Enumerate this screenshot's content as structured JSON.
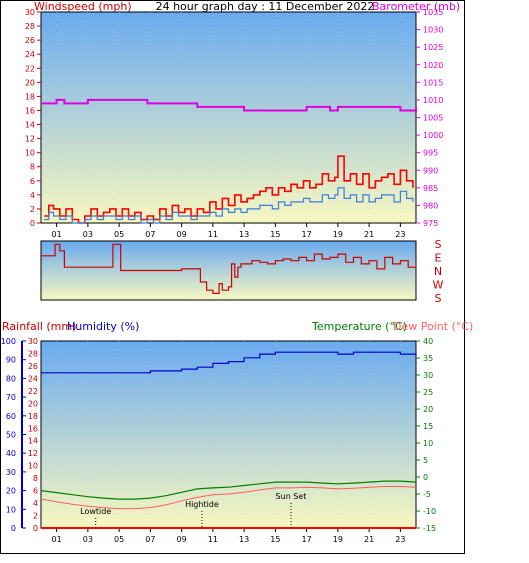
{
  "header": {
    "title": "24 hour graph day : 11 December 2022",
    "wind_label": "Windspeed (mph)",
    "baro_label": "Barometer (mb)"
  },
  "bottom_labels": {
    "rain": "Rainfall (mm)",
    "humidity": "Humidity (%)",
    "temperature": "Temperature (°C)",
    "dewpoint": "Dew Point (°C)"
  },
  "colors": {
    "wind_gust": "#ff0000",
    "wind_avg": "#3a7de0",
    "barometer": "#e000e0",
    "direction": "#cc0000",
    "humidity": "#0000cc",
    "temperature": "#008000",
    "dewpoint": "#ff6060",
    "rain": "#ff0000",
    "sky_top": "#6aaaf0",
    "sky_bottom": "#f8f8c0"
  },
  "chart_data": [
    {
      "type": "line",
      "x_ticks": [
        "01",
        "03",
        "05",
        "07",
        "09",
        "11",
        "13",
        "15",
        "17",
        "19",
        "21",
        "23"
      ],
      "xlim": [
        0,
        24
      ],
      "ylim_left": [
        0,
        30
      ],
      "y_ticks_left": [
        "0",
        "2",
        "4",
        "6",
        "8",
        "10",
        "12",
        "14",
        "16",
        "18",
        "20",
        "22",
        "24",
        "26",
        "28",
        "30"
      ],
      "ylim_right": [
        975,
        1035
      ],
      "y_ticks_right": [
        "975",
        "980",
        "985",
        "990",
        "995",
        "1000",
        "1005",
        "1010",
        "1015",
        "1020",
        "1025",
        "1030",
        "1035"
      ],
      "series": [
        {
          "key": "gust",
          "axis": "left",
          "x": [
            0.2,
            0.5,
            0.8,
            1.2,
            1.6,
            2.0,
            2.4,
            2.8,
            3.2,
            3.6,
            4.0,
            4.4,
            4.8,
            5.2,
            5.6,
            6.0,
            6.4,
            6.8,
            7.2,
            7.6,
            8.0,
            8.4,
            8.8,
            9.2,
            9.6,
            10.0,
            10.4,
            10.8,
            11.2,
            11.6,
            12.0,
            12.4,
            12.8,
            13.2,
            13.6,
            14.0,
            14.4,
            14.8,
            15.2,
            15.6,
            16.0,
            16.4,
            16.8,
            17.2,
            17.6,
            18.0,
            18.4,
            18.8,
            19.0,
            19.4,
            19.8,
            20.2,
            20.6,
            21.0,
            21.4,
            21.8,
            22.2,
            22.6,
            23.0,
            23.4,
            23.8
          ],
          "y": [
            1,
            2.5,
            2,
            1,
            2,
            0.5,
            0,
            1,
            2,
            1,
            1.5,
            2,
            1,
            2,
            1,
            1.5,
            0.5,
            1,
            0.5,
            2,
            1,
            2.5,
            1.5,
            2,
            1,
            2,
            1.5,
            3,
            2,
            3.5,
            2.5,
            4,
            3,
            3.5,
            4,
            4.5,
            5,
            4,
            5,
            4.5,
            5.5,
            5,
            6,
            5,
            5.5,
            7,
            6,
            6.5,
            9.5,
            6,
            7,
            5.5,
            7,
            5,
            6,
            6.5,
            7,
            5.5,
            7.5,
            6,
            5
          ]
        },
        {
          "key": "avg",
          "axis": "left",
          "x": [
            0.2,
            0.5,
            0.8,
            1.2,
            1.6,
            2.0,
            2.4,
            2.8,
            3.2,
            3.6,
            4.0,
            4.4,
            4.8,
            5.2,
            5.6,
            6.0,
            6.4,
            6.8,
            7.2,
            7.6,
            8.0,
            8.4,
            8.8,
            9.2,
            9.6,
            10.0,
            10.4,
            10.8,
            11.2,
            11.6,
            12.0,
            12.4,
            12.8,
            13.2,
            13.6,
            14.0,
            14.4,
            14.8,
            15.2,
            15.6,
            16.0,
            16.4,
            16.8,
            17.2,
            17.6,
            18.0,
            18.4,
            18.8,
            19.0,
            19.4,
            19.8,
            20.2,
            20.6,
            21.0,
            21.4,
            21.8,
            22.2,
            22.6,
            23.0,
            23.4,
            23.8
          ],
          "y": [
            0.5,
            1.5,
            1,
            0.5,
            1,
            0,
            0,
            0.5,
            1,
            0.5,
            1,
            1,
            0.5,
            1,
            0.5,
            1,
            0,
            0.5,
            0,
            1,
            0.5,
            1.5,
            1,
            1,
            0.5,
            1,
            1,
            1.5,
            1,
            2,
            1.5,
            2,
            1.5,
            2,
            2,
            2.5,
            2.5,
            2,
            3,
            2.5,
            3,
            3,
            3.5,
            3,
            3,
            4,
            3.5,
            4,
            5,
            3.5,
            4,
            3,
            4,
            3,
            3.5,
            4,
            4,
            3,
            4.5,
            3.5,
            3
          ]
        },
        {
          "key": "baro",
          "axis": "right",
          "x": [
            0,
            0.5,
            1.0,
            1.5,
            2.0,
            2.5,
            3.0,
            3.5,
            4.0,
            5.0,
            6.0,
            6.8,
            7.5,
            8.0,
            8.5,
            9.0,
            9.5,
            10.0,
            11.0,
            12.0,
            12.5,
            13.0,
            14.0,
            15.0,
            16.0,
            17.0,
            17.5,
            18.0,
            18.5,
            19.0,
            20.0,
            21.0,
            21.5,
            22.0,
            22.5,
            23.0,
            23.5,
            24.0
          ],
          "y": [
            1009,
            1009,
            1010,
            1009,
            1009,
            1009,
            1010,
            1010,
            1010,
            1010,
            1010,
            1009,
            1009,
            1009,
            1009,
            1009,
            1009,
            1008,
            1008,
            1008,
            1008,
            1007,
            1007,
            1007,
            1007,
            1008,
            1008,
            1008,
            1007,
            1008,
            1008,
            1008,
            1008,
            1008,
            1008,
            1007,
            1007,
            1008
          ]
        }
      ]
    },
    {
      "type": "line",
      "x_ticks": [],
      "xlim": [
        0,
        24
      ],
      "y_ticks_right": [
        "S",
        "E",
        "N",
        "W",
        "S"
      ],
      "series": [
        {
          "key": "direction",
          "x": [
            0,
            0.6,
            0.9,
            1.2,
            1.5,
            2.0,
            3.0,
            4.0,
            4.6,
            5.0,
            5.1,
            5.6,
            6.0,
            7.0,
            8.0,
            9.0,
            10.0,
            10.2,
            10.4,
            10.6,
            11.0,
            11.4,
            11.6,
            12.0,
            12.2,
            12.4,
            12.6,
            12.8,
            13.0,
            13.5,
            14.0,
            14.5,
            15.0,
            15.5,
            16.0,
            16.5,
            17.0,
            17.5,
            18.0,
            18.5,
            19.0,
            19.5,
            20.0,
            20.5,
            21.0,
            21.5,
            22.0,
            22.5,
            23.0,
            23.5,
            24.0
          ],
          "y": [
            135,
            135,
            170,
            150,
            100,
            100,
            100,
            100,
            170,
            170,
            90,
            90,
            90,
            90,
            90,
            95,
            95,
            55,
            55,
            30,
            20,
            50,
            30,
            40,
            110,
            70,
            100,
            110,
            110,
            120,
            115,
            110,
            120,
            125,
            120,
            130,
            120,
            140,
            125,
            130,
            140,
            115,
            130,
            110,
            120,
            95,
            130,
            110,
            120,
            100,
            115
          ]
        }
      ]
    },
    {
      "type": "line",
      "x_ticks": [
        "01",
        "03",
        "05",
        "07",
        "09",
        "11",
        "13",
        "15",
        "17",
        "19",
        "21",
        "23"
      ],
      "xlim": [
        0,
        24
      ],
      "ylim_humidity": [
        0,
        100
      ],
      "y_ticks_humidity": [
        "0",
        "10",
        "20",
        "30",
        "40",
        "50",
        "60",
        "70",
        "80",
        "90",
        "100"
      ],
      "ylim_rain": [
        0,
        30
      ],
      "y_ticks_rain": [
        "0",
        "2",
        "4",
        "6",
        "8",
        "10",
        "12",
        "14",
        "16",
        "18",
        "20",
        "22",
        "24",
        "26",
        "28",
        "30"
      ],
      "ylim_temp": [
        -15,
        40
      ],
      "y_ticks_temp": [
        "-15",
        "-10",
        "-5",
        "0",
        "5",
        "10",
        "15",
        "20",
        "25",
        "30",
        "35",
        "40"
      ],
      "annotations": [
        {
          "text": "Lowtide",
          "x": 3.5
        },
        {
          "text": "Hightide",
          "x": 10.3
        },
        {
          "text": "Sun Set",
          "x": 16.0
        }
      ],
      "series": [
        {
          "key": "humidity",
          "axis": "humidity",
          "x": [
            0,
            1,
            2,
            3,
            4,
            5,
            6,
            7,
            8,
            9,
            10,
            11,
            12,
            13,
            14,
            15,
            16,
            17,
            18,
            19,
            20,
            21,
            22,
            23,
            24
          ],
          "y": [
            83,
            83,
            83,
            83,
            83,
            83,
            83,
            84,
            84,
            85,
            86,
            88,
            89,
            91,
            93,
            94,
            94,
            94,
            94,
            93,
            94,
            94,
            94,
            93,
            92
          ]
        },
        {
          "key": "temperature",
          "axis": "temp",
          "x": [
            0,
            1,
            2,
            3,
            4,
            5,
            6,
            7,
            8,
            9,
            10,
            11,
            12,
            13,
            14,
            15,
            16,
            17,
            18,
            19,
            20,
            21,
            22,
            23,
            24
          ],
          "y": [
            -4,
            -4.6,
            -5.2,
            -5.8,
            -6.2,
            -6.5,
            -6.5,
            -6.2,
            -5.5,
            -4.5,
            -3.5,
            -3.2,
            -3,
            -2.5,
            -2,
            -1.5,
            -1.5,
            -1.5,
            -1.8,
            -2,
            -1.8,
            -1.5,
            -1.2,
            -1.2,
            -1.5
          ]
        },
        {
          "key": "dewpoint",
          "axis": "temp",
          "x": [
            0,
            1,
            2,
            3,
            4,
            5,
            6,
            7,
            8,
            9,
            10,
            11,
            12,
            13,
            14,
            15,
            16,
            17,
            18,
            19,
            20,
            21,
            22,
            23,
            24
          ],
          "y": [
            -6.5,
            -7.3,
            -8,
            -8.6,
            -9,
            -9.3,
            -9.3,
            -9,
            -8.2,
            -7,
            -6,
            -5.2,
            -5,
            -4.5,
            -3.8,
            -3.2,
            -3.2,
            -3,
            -3.2,
            -3.5,
            -3.3,
            -3,
            -2.8,
            -2.8,
            -3
          ]
        },
        {
          "key": "rain",
          "axis": "rain",
          "x": [
            0,
            24
          ],
          "y": [
            0,
            0
          ]
        }
      ]
    }
  ]
}
